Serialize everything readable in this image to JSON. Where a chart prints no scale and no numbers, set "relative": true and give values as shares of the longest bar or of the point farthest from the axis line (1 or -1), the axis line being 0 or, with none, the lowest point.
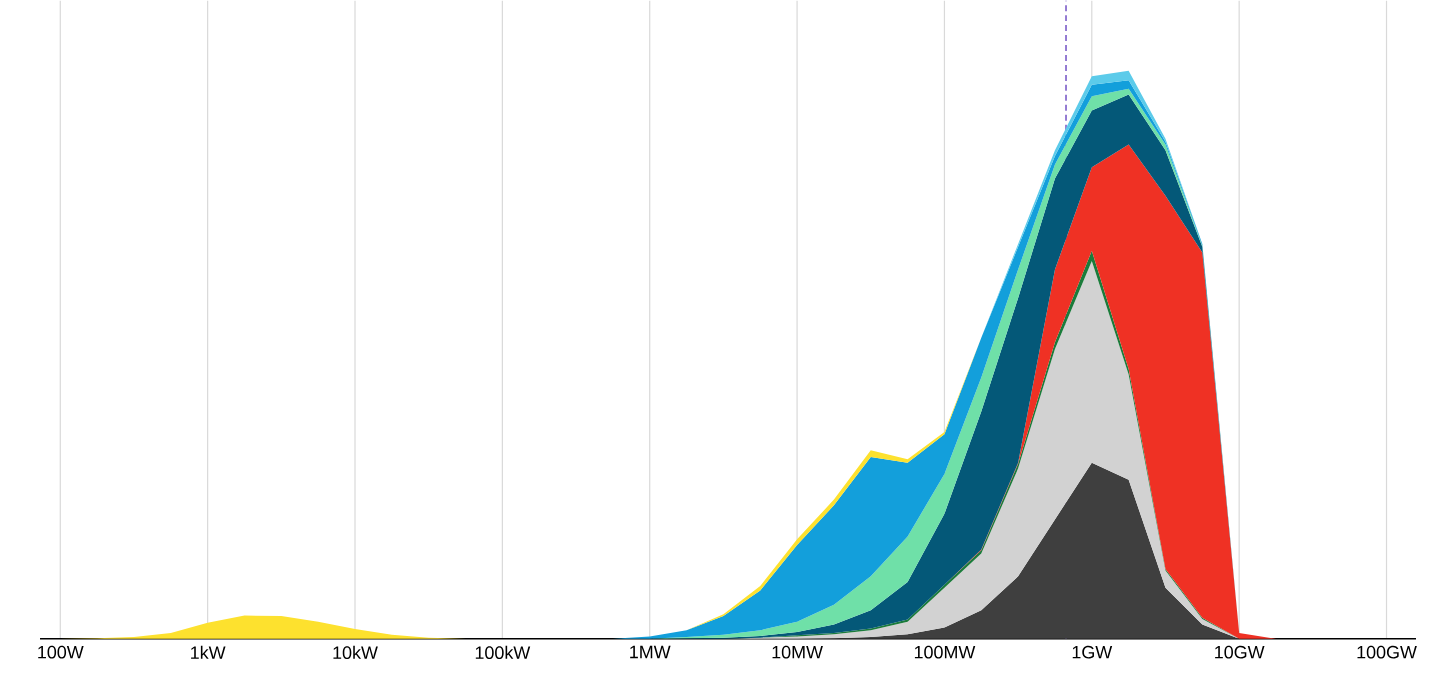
{
  "chart_data": {
    "type": "area",
    "stacked": true,
    "relative": true,
    "grid": "x",
    "categories": [
      "100W",
      null,
      null,
      null,
      "1kW",
      null,
      null,
      null,
      "10kW",
      null,
      null,
      null,
      "100kW",
      null,
      null,
      null,
      "1MW",
      null,
      null,
      null,
      "10MW",
      null,
      null,
      null,
      "100MW",
      null,
      null,
      null,
      "1GW",
      null,
      null,
      null,
      "10GW",
      null,
      null,
      null,
      "100GW"
    ],
    "series": [
      {
        "color": "#3f3f3f",
        "values": [
          0,
          0,
          0,
          0,
          0,
          0,
          0,
          0,
          0,
          0,
          0,
          0,
          0,
          0,
          0,
          0,
          0,
          0,
          0,
          0,
          0,
          0.001,
          0.003,
          0.008,
          0.02,
          0.05,
          0.11,
          0.21,
          0.31,
          0.28,
          0.09,
          0.025,
          0,
          0,
          0,
          0,
          0
        ]
      },
      {
        "color": "#d2d2d2",
        "values": [
          0,
          0,
          0,
          0,
          0,
          0,
          0,
          0,
          0,
          0,
          0,
          0,
          0,
          0,
          0,
          0,
          0,
          0,
          0,
          0.002,
          0.004,
          0.007,
          0.012,
          0.022,
          0.07,
          0.1,
          0.19,
          0.3,
          0.355,
          0.185,
          0.03,
          0.01,
          0,
          0,
          0,
          0,
          0
        ]
      },
      {
        "color": "#1b7b3b",
        "values": [
          0,
          0,
          0,
          0,
          0,
          0,
          0,
          0,
          0,
          0,
          0,
          0,
          0,
          0,
          0,
          0,
          0,
          0,
          0,
          0,
          0.002,
          0.002,
          0.003,
          0.004,
          0.005,
          0.006,
          0.008,
          0.012,
          0.018,
          0.01,
          0.003,
          0.002,
          0,
          0,
          0,
          0,
          0
        ]
      },
      {
        "color": "#ef3124",
        "values": [
          0,
          0,
          0,
          0,
          0,
          0,
          0,
          0,
          0,
          0,
          0,
          0,
          0,
          0,
          0,
          0,
          0,
          0,
          0,
          0,
          0,
          0,
          0,
          0,
          0,
          0.001,
          0.002,
          0.128,
          0.147,
          0.395,
          0.657,
          0.643,
          0.01,
          0,
          0,
          0,
          0
        ]
      },
      {
        "color": "#045878",
        "values": [
          0,
          0,
          0,
          0,
          0,
          0,
          0,
          0,
          0,
          0,
          0,
          0,
          0,
          0,
          0,
          0,
          0,
          0.001,
          0.002,
          0.003,
          0.006,
          0.015,
          0.032,
          0.066,
          0.125,
          0.243,
          0.29,
          0.16,
          0.1,
          0.088,
          0.08,
          0.01,
          0,
          0,
          0,
          0,
          0
        ]
      },
      {
        "color": "#6fe0a8",
        "values": [
          0,
          0,
          0,
          0,
          0,
          0,
          0,
          0,
          0,
          0,
          0,
          0,
          0,
          0,
          0,
          0,
          0,
          0.002,
          0.005,
          0.01,
          0.018,
          0.035,
          0.06,
          0.08,
          0.07,
          0.06,
          0.05,
          0.025,
          0.025,
          0.01,
          0.01,
          0.002,
          0,
          0,
          0,
          0,
          0
        ]
      },
      {
        "color": "#139fdb",
        "values": [
          0,
          0,
          0,
          0,
          0,
          0,
          0,
          0,
          0,
          0,
          0,
          0,
          0,
          0,
          0,
          0,
          0.004,
          0.012,
          0.033,
          0.07,
          0.135,
          0.175,
          0.21,
          0.13,
          0.07,
          0.07,
          0.04,
          0.015,
          0.02,
          0.015,
          0.005,
          0.003,
          0,
          0,
          0,
          0,
          0
        ]
      },
      {
        "color": "#5ccbea",
        "values": [
          0,
          0,
          0,
          0,
          0,
          0,
          0,
          0,
          0,
          0,
          0,
          0,
          0,
          0,
          0,
          0,
          0,
          0,
          0,
          0,
          0,
          0,
          0,
          0,
          0,
          0,
          0.005,
          0.01,
          0.015,
          0.017,
          0.005,
          0,
          0,
          0,
          0,
          0,
          0
        ]
      },
      {
        "color": "#fde12e",
        "values": [
          0,
          0.001,
          0.003,
          0.01,
          0.028,
          0.041,
          0.04,
          0.03,
          0.017,
          0.007,
          0.002,
          0,
          null,
          null,
          null,
          null,
          null,
          0,
          0.003,
          0.008,
          0.01,
          0.01,
          0.012,
          0.006,
          0.004,
          0,
          null,
          null,
          null,
          null,
          null,
          null,
          null,
          null,
          null,
          null,
          null
        ]
      }
    ]
  }
}
